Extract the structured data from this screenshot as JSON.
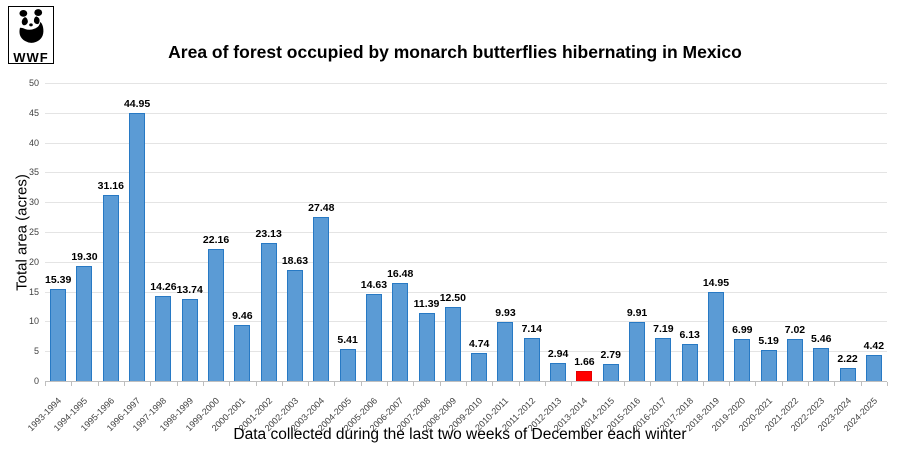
{
  "logo": {
    "text": "WWF",
    "icon": "wwf-panda-icon"
  },
  "chart_data": {
    "type": "bar",
    "title": "Area of forest occupied by monarch butterflies hibernating in Mexico",
    "xlabel": "Data collected during the last two weeks of December each winter",
    "ylabel": "Total area (acres)",
    "ylim": [
      0,
      50
    ],
    "yticks": [
      0,
      5,
      10,
      15,
      20,
      25,
      30,
      35,
      40,
      45,
      50
    ],
    "grid": "horizontal",
    "legend": "none",
    "categories": [
      "1993-1994",
      "1994-1995",
      "1995-1996",
      "1996-1997",
      "1997-1998",
      "1998-1999",
      "1999-2000",
      "2000-2001",
      "2001-2002",
      "2002-2003",
      "2003-2004",
      "2004-2005",
      "2005-2006",
      "2006-2007",
      "2007-2008",
      "2008-2009",
      "2009-2010",
      "2010-2011",
      "2011-2012",
      "2012-2013",
      "2013-2014",
      "2014-2015",
      "2015-2016",
      "2016-2017",
      "2017-2018",
      "2018-2019",
      "2019-2020",
      "2020-2021",
      "2021-2022",
      "2022-2023",
      "2023-2024",
      "2024-2025"
    ],
    "values": [
      15.39,
      19.3,
      31.16,
      44.95,
      14.26,
      13.74,
      22.16,
      9.46,
      23.13,
      18.63,
      27.48,
      5.41,
      14.63,
      16.48,
      11.39,
      12.5,
      4.74,
      9.93,
      7.14,
      2.94,
      1.66,
      2.79,
      9.91,
      7.19,
      6.13,
      14.95,
      6.99,
      5.19,
      7.02,
      5.46,
      2.22,
      4.42
    ],
    "bar_color": "#5B9BD5",
    "bar_border_color": "#2779C4",
    "highlight_index": 20,
    "highlight_color": "#FF0000",
    "highlight_border_color": "#E60000",
    "value_label_decimals": 2
  }
}
